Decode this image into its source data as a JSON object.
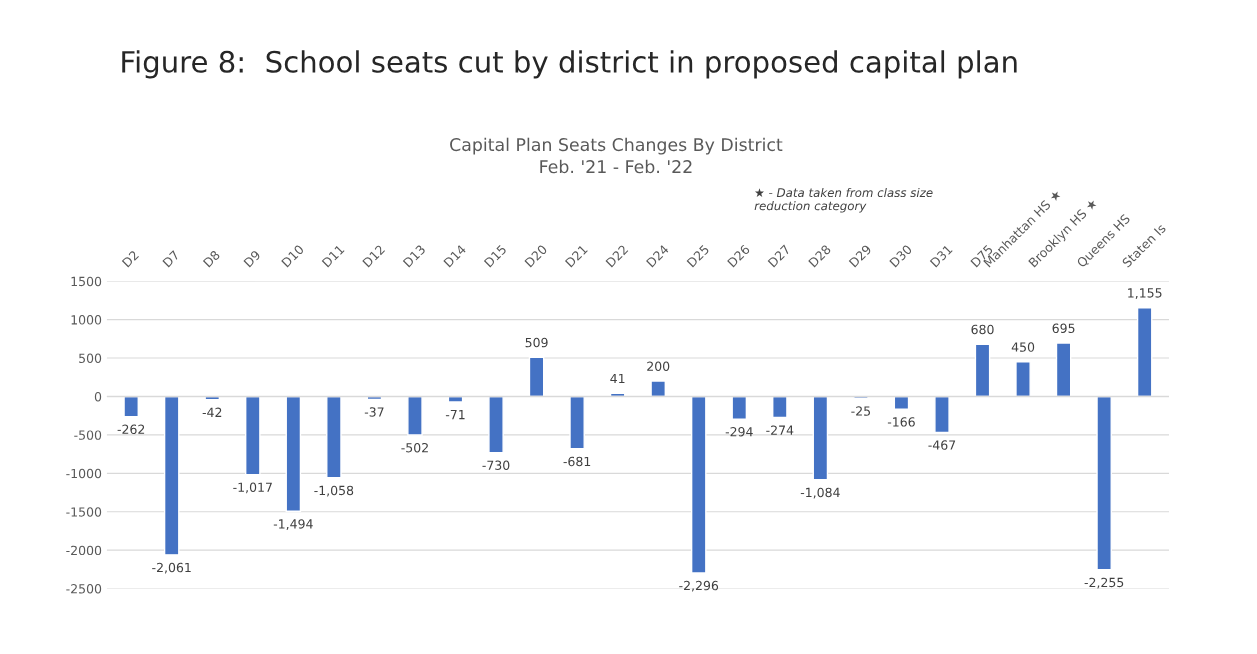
{
  "chart_data": {
    "type": "bar",
    "title": "Figure 8:  School seats cut by district in proposed capital plan",
    "subtitle": "Capital Plan Seats Changes By District\nFeb. '21 - Feb. '22",
    "categories": [
      "D2",
      "D7",
      "D8",
      "D9",
      "D10",
      "D11",
      "D12",
      "D13",
      "D14",
      "D15",
      "D20",
      "D21",
      "D22",
      "D24",
      "D25",
      "D26",
      "D27",
      "D28",
      "D29",
      "D30",
      "D31",
      "D75",
      "Manhattan HS ★",
      "Brooklyn HS ★",
      "Queens HS",
      "Staten Is"
    ],
    "values": [
      -262,
      -2061,
      -42,
      -1017,
      -1494,
      -1058,
      -37,
      -502,
      -71,
      -730,
      509,
      -681,
      41,
      200,
      -2296,
      -294,
      -274,
      -1084,
      -25,
      -166,
      -467,
      680,
      450,
      695,
      -2255,
      1155
    ],
    "value_labels": [
      "-262",
      "-2,061",
      "-42",
      "-1,017",
      "-1,494",
      "-1,058",
      "-37",
      "-502",
      "-71",
      "-730",
      "509",
      "-681",
      "41",
      "200",
      "-2,296",
      "-294",
      "-274",
      "-1,084",
      "-25",
      "-166",
      "-467",
      "680",
      "450",
      "695",
      "-2,255",
      "1,155"
    ],
    "color": "#4472c4",
    "ylim": [
      -2500,
      1500
    ],
    "yticks": [
      -2500,
      -2000,
      -1500,
      -1000,
      -500,
      0,
      500,
      1000,
      1500
    ],
    "grid": "y",
    "annotations": [
      "★ - Data taken from class size\nreduction category"
    ]
  }
}
